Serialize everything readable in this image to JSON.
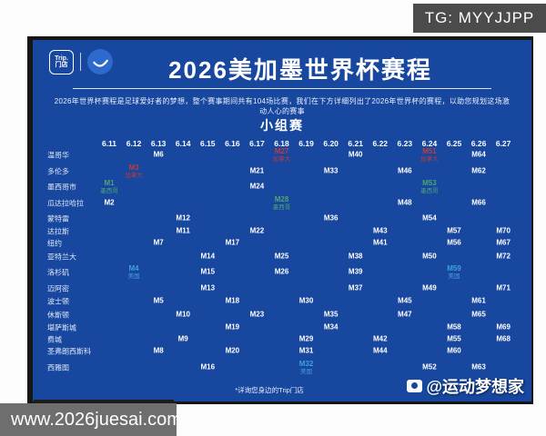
{
  "tg_badge": "TG: MYYJJPP",
  "url_bar": "www.2026juesai.com",
  "header": {
    "badge_line1": "Trip.",
    "badge_line2": "门店",
    "title": "2026美加墨世界杯赛程",
    "subtitle": "2026年世界杯赛程是足球爱好者的梦想，整个赛事期间共有104场比赛，我们在下方详细列出了2026年世界杯的赛程，以助您规划这场激动人心的赛事"
  },
  "footnote": "*详询您身边的Trip门店",
  "credit": "@运动梦想家",
  "colors": {
    "panel": "#17479E",
    "canada": "#C23B3B",
    "mexico": "#4FA573",
    "usa": "#41A0DD",
    "default": "#FFFFFF"
  },
  "chart_data": {
    "type": "table",
    "title": "2026美加墨世界杯赛程",
    "stage_label": "小组赛",
    "dates": [
      "6.11",
      "6.12",
      "6.13",
      "6.14",
      "6.15",
      "6.16",
      "6.17",
      "6.18",
      "6.19",
      "6.20",
      "6.21",
      "6.22",
      "6.23",
      "6.24",
      "6.25",
      "6.26",
      "6.27"
    ],
    "highlight_legend": {
      "canada": "加拿大",
      "mexico": "墨西哥",
      "usa": "美国"
    },
    "rows": [
      {
        "city": "温哥华",
        "matches": [
          {
            "date": "6.13",
            "label": "M6"
          },
          {
            "date": "6.18",
            "label": "M27",
            "team": "加拿大",
            "flag": "canada"
          },
          {
            "date": "6.21",
            "label": "M40"
          },
          {
            "date": "6.24",
            "label": "M51",
            "team": "加拿大",
            "flag": "canada"
          },
          {
            "date": "6.26",
            "label": "M64"
          }
        ]
      },
      {
        "city": "多伦多",
        "matches": [
          {
            "date": "6.12",
            "label": "M3",
            "team": "加拿大",
            "flag": "canada"
          },
          {
            "date": "6.17",
            "label": "M21"
          },
          {
            "date": "6.20",
            "label": "M33"
          },
          {
            "date": "6.23",
            "label": "M46"
          },
          {
            "date": "6.26",
            "label": "M62"
          }
        ]
      },
      {
        "city": "墨西哥市",
        "matches": [
          {
            "date": "6.11",
            "label": "M1",
            "team": "墨西哥",
            "flag": "mexico"
          },
          {
            "date": "6.17",
            "label": "M24"
          },
          {
            "date": "6.24",
            "label": "M53",
            "team": "墨西哥",
            "flag": "mexico"
          }
        ]
      },
      {
        "city": "瓜达拉哈拉",
        "matches": [
          {
            "date": "6.11",
            "label": "M2"
          },
          {
            "date": "6.18",
            "label": "M28",
            "team": "墨西哥",
            "flag": "mexico"
          },
          {
            "date": "6.23",
            "label": "M48"
          },
          {
            "date": "6.26",
            "label": "M66"
          }
        ]
      },
      {
        "city": "蒙特雷",
        "matches": [
          {
            "date": "6.14",
            "label": "M12"
          },
          {
            "date": "6.20",
            "label": "M36"
          },
          {
            "date": "6.24",
            "label": "M54"
          }
        ]
      },
      {
        "city": "达拉斯",
        "matches": [
          {
            "date": "6.14",
            "label": "M11"
          },
          {
            "date": "6.17",
            "label": "M22"
          },
          {
            "date": "6.22",
            "label": "M43"
          },
          {
            "date": "6.25",
            "label": "M57"
          },
          {
            "date": "6.27",
            "label": "M70"
          }
        ]
      },
      {
        "city": "纽约",
        "matches": [
          {
            "date": "6.13",
            "label": "M7"
          },
          {
            "date": "6.16",
            "label": "M17"
          },
          {
            "date": "6.22",
            "label": "M41"
          },
          {
            "date": "6.25",
            "label": "M56"
          },
          {
            "date": "6.27",
            "label": "M67"
          }
        ]
      },
      {
        "city": "亚特兰大",
        "matches": [
          {
            "date": "6.15",
            "label": "M14"
          },
          {
            "date": "6.18",
            "label": "M25"
          },
          {
            "date": "6.21",
            "label": "M38"
          },
          {
            "date": "6.24",
            "label": "M50"
          },
          {
            "date": "6.27",
            "label": "M72"
          }
        ]
      },
      {
        "city": "洛杉矶",
        "matches": [
          {
            "date": "6.12",
            "label": "M4",
            "team": "美国",
            "flag": "usa"
          },
          {
            "date": "6.15",
            "label": "M15"
          },
          {
            "date": "6.18",
            "label": "M26"
          },
          {
            "date": "6.21",
            "label": "M39"
          },
          {
            "date": "6.25",
            "label": "M59",
            "team": "美国",
            "flag": "usa"
          }
        ]
      },
      {
        "city": "迈阿密",
        "matches": [
          {
            "date": "6.15",
            "label": "M13"
          },
          {
            "date": "6.21",
            "label": "M37"
          },
          {
            "date": "6.24",
            "label": "M49"
          },
          {
            "date": "6.27",
            "label": "M71"
          }
        ]
      },
      {
        "city": "波士顿",
        "matches": [
          {
            "date": "6.13",
            "label": "M5"
          },
          {
            "date": "6.16",
            "label": "M18"
          },
          {
            "date": "6.19",
            "label": "M30"
          },
          {
            "date": "6.23",
            "label": "M45"
          },
          {
            "date": "6.26",
            "label": "M61"
          }
        ]
      },
      {
        "city": "休斯顿",
        "matches": [
          {
            "date": "6.14",
            "label": "M10"
          },
          {
            "date": "6.17",
            "label": "M23"
          },
          {
            "date": "6.20",
            "label": "M35"
          },
          {
            "date": "6.23",
            "label": "M47"
          },
          {
            "date": "6.26",
            "label": "M65"
          }
        ]
      },
      {
        "city": "堪萨斯城",
        "matches": [
          {
            "date": "6.16",
            "label": "M19"
          },
          {
            "date": "6.20",
            "label": "M34"
          },
          {
            "date": "6.25",
            "label": "M58"
          },
          {
            "date": "6.27",
            "label": "M69"
          }
        ]
      },
      {
        "city": "费城",
        "matches": [
          {
            "date": "6.14",
            "label": "M9"
          },
          {
            "date": "6.19",
            "label": "M29"
          },
          {
            "date": "6.22",
            "label": "M42"
          },
          {
            "date": "6.25",
            "label": "M55"
          },
          {
            "date": "6.27",
            "label": "M68"
          }
        ]
      },
      {
        "city": "圣弗朗西斯科",
        "matches": [
          {
            "date": "6.13",
            "label": "M8"
          },
          {
            "date": "6.16",
            "label": "M20"
          },
          {
            "date": "6.19",
            "label": "M31"
          },
          {
            "date": "6.22",
            "label": "M44"
          },
          {
            "date": "6.25",
            "label": "M60"
          }
        ]
      },
      {
        "city": "西雅图",
        "matches": [
          {
            "date": "6.15",
            "label": "M16"
          },
          {
            "date": "6.19",
            "label": "M32",
            "team": "美国",
            "flag": "usa"
          },
          {
            "date": "6.24",
            "label": "M52"
          },
          {
            "date": "6.26",
            "label": "M63"
          }
        ]
      }
    ]
  }
}
